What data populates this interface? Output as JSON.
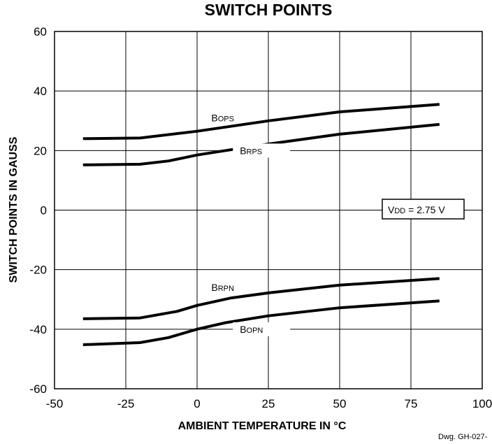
{
  "chart_data": {
    "type": "line",
    "title": "SWITCH POINTS",
    "xlabel": "AMBIENT TEMPERATURE IN °C",
    "ylabel": "SWITCH POINTS IN GAUSS",
    "xlim": [
      -50,
      100
    ],
    "ylim": [
      -60,
      60
    ],
    "x_ticks": [
      "-50",
      "-25",
      "0",
      "25",
      "50",
      "75",
      "100"
    ],
    "y_ticks": [
      "60",
      "40",
      "20",
      "0",
      "-20",
      "-40",
      "-60"
    ],
    "grid": true,
    "series": [
      {
        "name": "BOPS",
        "label_main": "B",
        "label_sub": "OPS",
        "x": [
          -40,
          -20,
          0,
          25,
          50,
          85
        ],
        "values": [
          24,
          24.2,
          26.5,
          30,
          33,
          35.5
        ]
      },
      {
        "name": "BRPS",
        "label_main": "B",
        "label_sub": "RPS",
        "x": [
          -40,
          -20,
          -10,
          0,
          10,
          25,
          50,
          85
        ],
        "values": [
          15.2,
          15.4,
          16.5,
          18.5,
          20,
          22.2,
          25.5,
          28.8
        ]
      },
      {
        "name": "BRPN",
        "label_main": "B",
        "label_sub": "RPN",
        "x": [
          -40,
          -20,
          -7,
          0,
          12,
          25,
          50,
          85
        ],
        "values": [
          -36.5,
          -36.2,
          -34,
          -32,
          -29.5,
          -27.8,
          -25.2,
          -23
        ]
      },
      {
        "name": "BOPN",
        "label_main": "B",
        "label_sub": "OPN",
        "x": [
          -40,
          -20,
          -10,
          0,
          10,
          25,
          50,
          85
        ],
        "values": [
          -45.2,
          -44.5,
          -42.8,
          -40,
          -37.8,
          -35.5,
          -32.8,
          -30.5
        ]
      }
    ],
    "annotations": {
      "condition_main": "V",
      "condition_sub": "DD",
      "condition_value": " = 2.75 V",
      "drawing_id": "Dwg. GH-027-"
    }
  }
}
